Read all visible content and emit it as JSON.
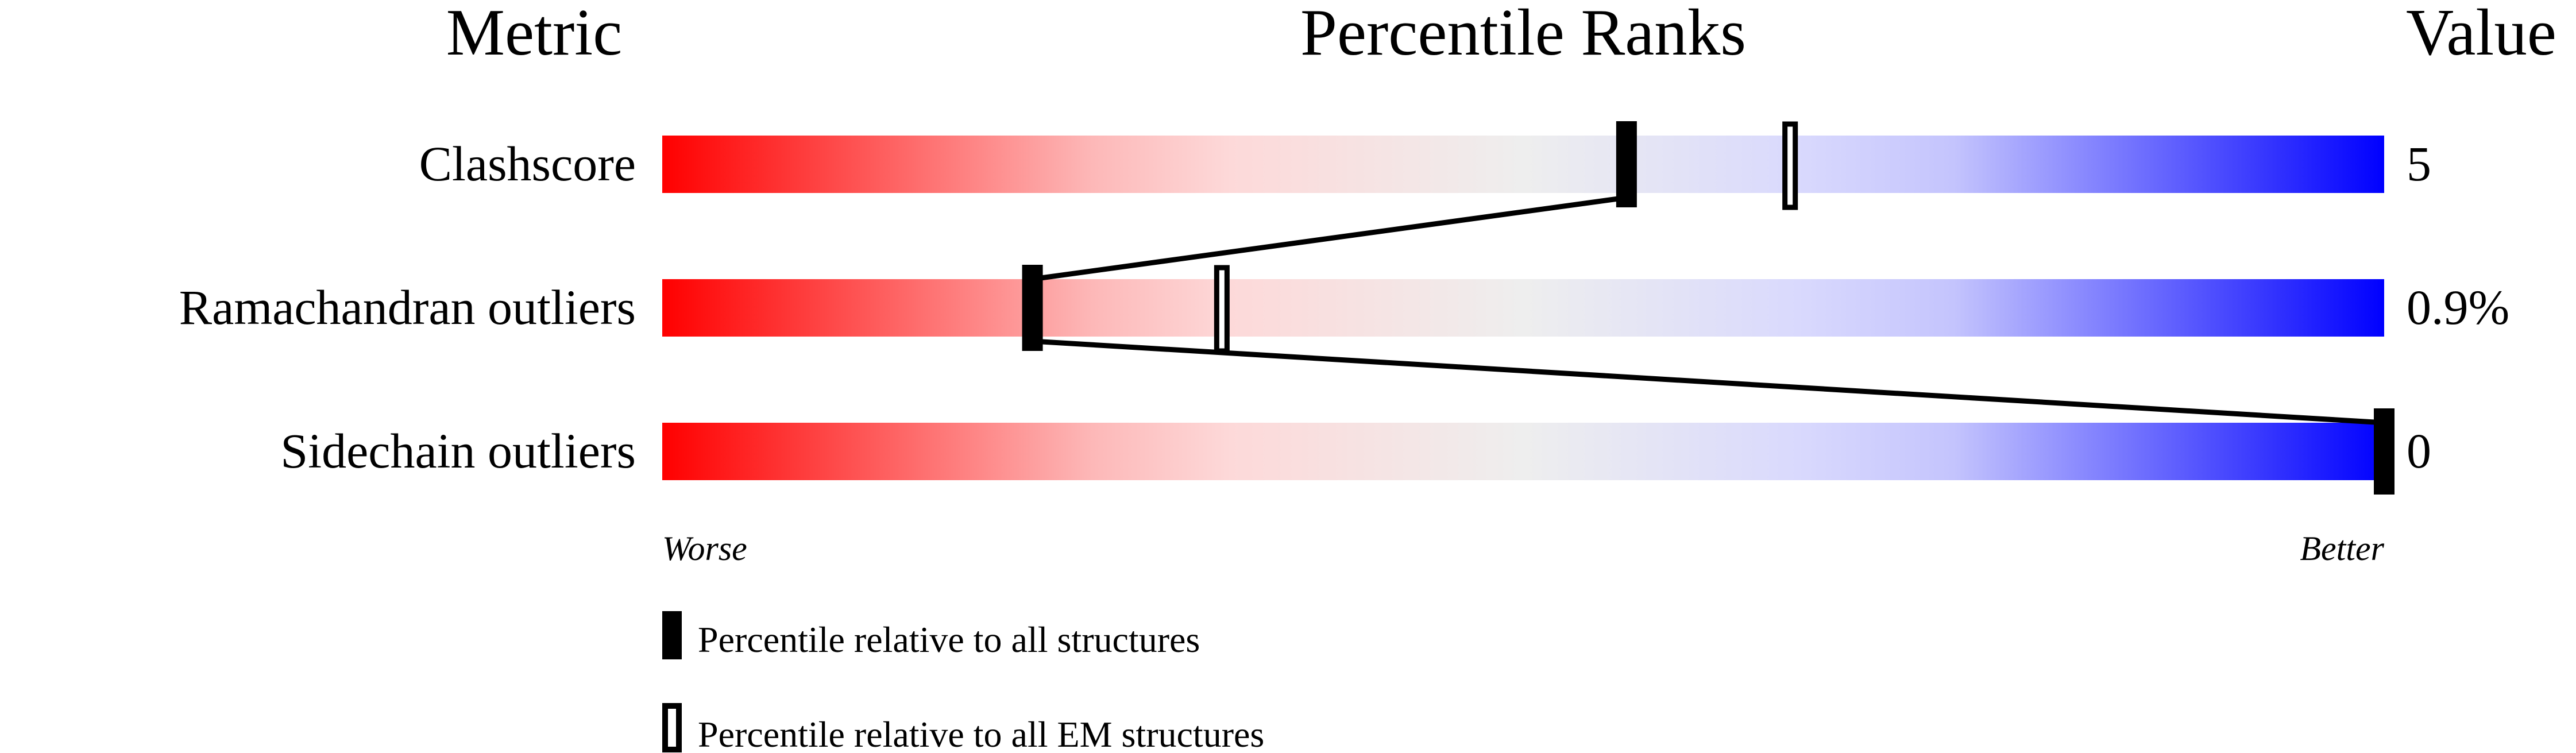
{
  "chart_data": {
    "type": "percentile-slider",
    "headers": {
      "metric": "Metric",
      "ranks": "Percentile Ranks",
      "value": "Value"
    },
    "xlim": [
      0,
      100
    ],
    "axis_labels": {
      "left": "Worse",
      "right": "Better"
    },
    "gradient_colors": [
      "#ff0000",
      "#fdd9d9",
      "#eeeeee",
      "#d9d9fd",
      "#0000ff"
    ],
    "rows": [
      {
        "metric": "Clashscore",
        "value": "5",
        "percentile_all": 56,
        "percentile_em": 65.5
      },
      {
        "metric": "Ramachandran outliers",
        "value": "0.9%",
        "percentile_all": 21.5,
        "percentile_em": 32.5
      },
      {
        "metric": "Sidechain outliers",
        "value": "0",
        "percentile_all": 100,
        "percentile_em": null
      }
    ],
    "legend": [
      {
        "marker": "filled",
        "label": "Percentile relative to all structures"
      },
      {
        "marker": "open",
        "label": "Percentile relative to all EM structures"
      }
    ]
  }
}
